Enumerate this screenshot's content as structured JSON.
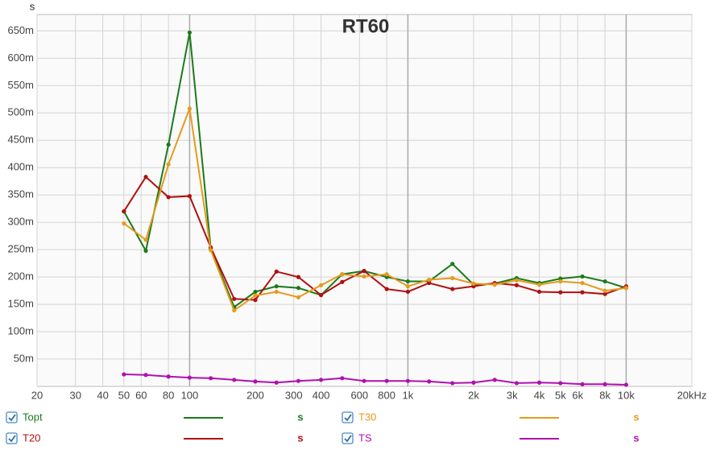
{
  "chart_data": {
    "type": "line",
    "title": "RT60",
    "ylabel": "s",
    "x": [
      50,
      63,
      80,
      100,
      125,
      160,
      200,
      250,
      315,
      400,
      500,
      630,
      800,
      1000,
      1250,
      1600,
      2000,
      2500,
      3150,
      4000,
      5000,
      6300,
      8000,
      10000
    ],
    "xscale": "log",
    "xlim": [
      20,
      20000
    ],
    "ylim": [
      0,
      0.68
    ],
    "grid": true,
    "xticks": [
      20,
      30,
      40,
      50,
      60,
      80,
      100,
      200,
      300,
      400,
      600,
      800,
      {
        "value": 1000,
        "label": "1k"
      },
      {
        "value": 2000,
        "label": "2k"
      },
      {
        "value": 3000,
        "label": "3k"
      },
      {
        "value": 4000,
        "label": "4k"
      },
      {
        "value": 5000,
        "label": "5k"
      },
      {
        "value": 6000,
        "label": "6k"
      },
      {
        "value": 8000,
        "label": "8k"
      },
      {
        "value": 10000,
        "label": "10k"
      },
      {
        "value": 20000,
        "label": "20kHz"
      }
    ],
    "yticks": [
      {
        "value": 0.05,
        "label": "50m"
      },
      {
        "value": 0.1,
        "label": "100m"
      },
      {
        "value": 0.15,
        "label": "150m"
      },
      {
        "value": 0.2,
        "label": "200m"
      },
      {
        "value": 0.25,
        "label": "250m"
      },
      {
        "value": 0.3,
        "label": "300m"
      },
      {
        "value": 0.35,
        "label": "350m"
      },
      {
        "value": 0.4,
        "label": "400m"
      },
      {
        "value": 0.45,
        "label": "450m"
      },
      {
        "value": 0.5,
        "label": "500m"
      },
      {
        "value": 0.55,
        "label": "550m"
      },
      {
        "value": 0.6,
        "label": "600m"
      },
      {
        "value": 0.65,
        "label": "650m"
      }
    ],
    "series": [
      {
        "name": "Topt",
        "color": "#1a7a1a",
        "unit": "s",
        "values": [
          0.32,
          0.248,
          0.442,
          0.647,
          0.252,
          0.145,
          0.173,
          0.183,
          0.18,
          0.167,
          0.205,
          0.211,
          0.2,
          0.192,
          0.192,
          0.224,
          0.186,
          0.188,
          0.198,
          0.189,
          0.197,
          0.201,
          0.192,
          0.18
        ]
      },
      {
        "name": "T20",
        "color": "#b01010",
        "unit": "s",
        "values": [
          0.32,
          0.383,
          0.346,
          0.348,
          0.254,
          0.16,
          0.158,
          0.21,
          0.2,
          0.167,
          0.191,
          0.211,
          0.178,
          0.173,
          0.189,
          0.178,
          0.183,
          0.189,
          0.185,
          0.173,
          0.172,
          0.172,
          0.169,
          0.183
        ]
      },
      {
        "name": "T30",
        "color": "#e69a1e",
        "unit": "s",
        "values": [
          0.298,
          0.268,
          0.406,
          0.508,
          0.249,
          0.139,
          0.166,
          0.173,
          0.163,
          0.185,
          0.205,
          0.201,
          0.205,
          0.183,
          0.195,
          0.198,
          0.188,
          0.186,
          0.194,
          0.186,
          0.192,
          0.189,
          0.175,
          0.18
        ]
      },
      {
        "name": "TS",
        "color": "#b010b0",
        "unit": "s",
        "values": [
          0.022,
          0.021,
          0.018,
          0.016,
          0.015,
          0.012,
          0.009,
          0.007,
          0.01,
          0.012,
          0.015,
          0.01,
          0.01,
          0.01,
          0.009,
          0.006,
          0.007,
          0.012,
          0.006,
          0.007,
          0.006,
          0.004,
          0.004,
          0.003
        ]
      }
    ]
  }
}
